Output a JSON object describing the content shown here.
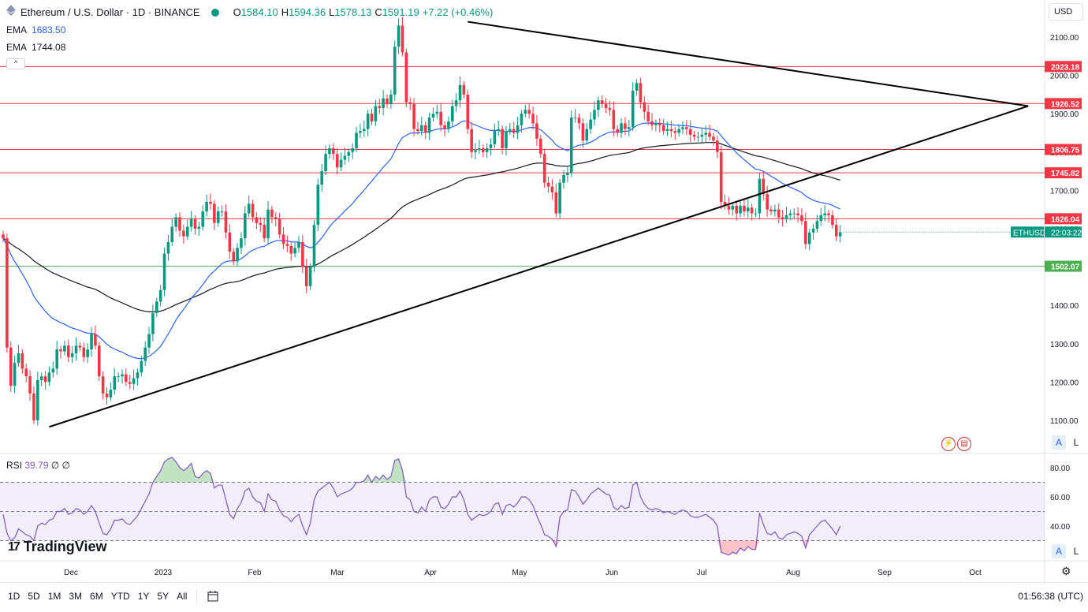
{
  "header": {
    "symbol_title": "Ethereum / U.S. Dollar · 1D · BINANCE",
    "ohlc": [
      {
        "label": "O",
        "value": "1584.10"
      },
      {
        "label": "H",
        "value": "1594.36"
      },
      {
        "label": "L",
        "value": "1578.13"
      },
      {
        "label": "C",
        "value": "1591.19"
      },
      {
        "label": "",
        "value": "+7.22 (+0.46%)"
      }
    ],
    "ema1_label": "EMA",
    "ema1_value": "1683.50",
    "ema2_label": "EMA",
    "ema2_value": "1744.08",
    "collapse_symbol": "^",
    "currency": "USD"
  },
  "colors": {
    "up": "#089981",
    "down": "#f23645",
    "ema_short": "#2962ff",
    "ema_long": "#131722",
    "resistance": "#f23645",
    "support": "#4caf50",
    "rsi": "#7e57c2"
  },
  "icons": [
    "eye-icon",
    "settings-icon",
    "calendar-range-icon",
    "lightning-icon",
    "us-flag-icon"
  ],
  "chart_data": [
    {
      "type": "line",
      "title": "Ethereum / U.S. Dollar · 1D · BINANCE",
      "ylim": [
        1060,
        2150
      ],
      "y_ticks": [
        "1100.00",
        "1200.00",
        "1300.00",
        "1400.00",
        "1500.00",
        "1600.00",
        "1700.00",
        "1800.00",
        "1900.00",
        "2000.00",
        "2100.00"
      ],
      "x_tick_labels": [
        "Dec",
        "2023",
        "Feb",
        "Mar",
        "Apr",
        "May",
        "Jun",
        "Jul",
        "Aug",
        "Sep",
        "Oct"
      ],
      "candles_approx": {
        "close": [
          1575,
          1290,
          1190,
          1250,
          1275,
          1235,
          1215,
          1170,
          1100,
          1205,
          1215,
          1200,
          1225,
          1235,
          1285,
          1280,
          1295,
          1265,
          1275,
          1295,
          1290,
          1265,
          1285,
          1325,
          1295,
          1215,
          1170,
          1160,
          1180,
          1215,
          1215,
          1220,
          1200,
          1195,
          1210,
          1225,
          1255,
          1290,
          1325,
          1380,
          1410,
          1440,
          1535,
          1565,
          1605,
          1630,
          1595,
          1580,
          1605,
          1625,
          1600,
          1605,
          1645,
          1670,
          1665,
          1615,
          1645,
          1645,
          1590,
          1540,
          1515,
          1550,
          1575,
          1640,
          1665,
          1630,
          1615,
          1610,
          1575,
          1650,
          1630,
          1625,
          1585,
          1560,
          1555,
          1535,
          1550,
          1565,
          1500,
          1450,
          1500,
          1610,
          1715,
          1750,
          1795,
          1810,
          1795,
          1760,
          1780,
          1790,
          1800,
          1810,
          1850,
          1855,
          1860,
          1900,
          1880,
          1920,
          1915,
          1940,
          1925,
          1950,
          2075,
          2130,
          2060,
          1930,
          1925,
          1860,
          1855,
          1870,
          1850,
          1890,
          1900,
          1905,
          1870,
          1860,
          1880,
          1920,
          1935,
          1975,
          1950,
          1860,
          1800,
          1805,
          1810,
          1800,
          1810,
          1820,
          1855,
          1860,
          1810,
          1855,
          1860,
          1850,
          1870,
          1900,
          1910,
          1900,
          1875,
          1835,
          1795,
          1720,
          1710,
          1695,
          1640,
          1720,
          1740,
          1745,
          1890,
          1890,
          1875,
          1830,
          1860,
          1885,
          1910,
          1935,
          1925,
          1915,
          1910,
          1860,
          1850,
          1875,
          1860,
          1865,
          1960,
          1980,
          1930,
          1905,
          1880,
          1870,
          1875,
          1870,
          1855,
          1860,
          1855,
          1850,
          1860,
          1865,
          1860,
          1845,
          1840,
          1840,
          1845,
          1850,
          1840,
          1830,
          1800,
          1670,
          1660,
          1650,
          1660,
          1640,
          1660,
          1645,
          1655,
          1640,
          1640,
          1730,
          1690,
          1650,
          1645,
          1650,
          1630,
          1625,
          1635,
          1640,
          1640,
          1635,
          1620,
          1560,
          1590,
          1600,
          1620,
          1635,
          1640,
          1635,
          1610,
          1580,
          1591
        ]
      },
      "series": [
        {
          "name": "EMA",
          "value_label": "1683.50",
          "color": "#2962ff"
        },
        {
          "name": "EMA",
          "value_label": "1744.08",
          "color": "#131722"
        }
      ],
      "horizontal_levels": [
        {
          "value": 2023.18,
          "label": "2023.18",
          "kind": "resistance"
        },
        {
          "value": 1926.52,
          "label": "1926.52",
          "kind": "resistance"
        },
        {
          "value": 1806.75,
          "label": "1806.75",
          "kind": "resistance"
        },
        {
          "value": 1745.82,
          "label": "1745.82",
          "kind": "resistance"
        },
        {
          "value": 1626.04,
          "label": "1626.04",
          "kind": "resistance"
        },
        {
          "value": 1502.07,
          "label": "1502.07",
          "kind": "support"
        }
      ],
      "trendlines": [
        {
          "from": {
            "bar": 12,
            "price": 1083
          },
          "to": {
            "bar": 267,
            "price": 1920
          }
        },
        {
          "from": {
            "bar": 121,
            "price": 2140
          },
          "to": {
            "bar": 267,
            "price": 1920
          }
        }
      ],
      "last_price_tag": {
        "symbol": "ETHUSD",
        "countdown": "22:03:22",
        "value": 1591.19
      },
      "legend_position": "top-left"
    },
    {
      "type": "line",
      "title": "RSI",
      "value_label": "39.79",
      "extra_labels": [
        "∅",
        "∅"
      ],
      "ylim": [
        20,
        90
      ],
      "y_ticks": [
        "40.00",
        "60.00",
        "80.00"
      ],
      "band": [
        30,
        70
      ],
      "values_approx": [
        48,
        35,
        30,
        32,
        38,
        36,
        34,
        33,
        30,
        40,
        42,
        41,
        44,
        45,
        50,
        50,
        52,
        48,
        49,
        52,
        51,
        48,
        50,
        54,
        50,
        42,
        35,
        34,
        38,
        44,
        44,
        45,
        42,
        41,
        44,
        47,
        52,
        57,
        62,
        70,
        74,
        78,
        84,
        86,
        87,
        84,
        80,
        78,
        80,
        83,
        74,
        73,
        76,
        78,
        76,
        66,
        68,
        68,
        58,
        48,
        45,
        52,
        56,
        64,
        66,
        60,
        57,
        56,
        50,
        62,
        58,
        57,
        51,
        47,
        46,
        43,
        46,
        48,
        40,
        34,
        42,
        58,
        64,
        66,
        68,
        70,
        66,
        60,
        62,
        63,
        64,
        66,
        70,
        70,
        71,
        75,
        70,
        74,
        72,
        75,
        72,
        74,
        85,
        86,
        78,
        60,
        58,
        50,
        49,
        53,
        50,
        58,
        60,
        60,
        53,
        52,
        55,
        60,
        60,
        64,
        58,
        48,
        44,
        46,
        48,
        47,
        48,
        50,
        55,
        56,
        48,
        54,
        55,
        53,
        56,
        60,
        60,
        58,
        54,
        47,
        41,
        34,
        33,
        31,
        26,
        46,
        50,
        51,
        65,
        64,
        60,
        55,
        58,
        62,
        64,
        66,
        64,
        62,
        61,
        53,
        51,
        54,
        52,
        53,
        68,
        70,
        60,
        55,
        52,
        51,
        52,
        51,
        49,
        50,
        49,
        48,
        50,
        51,
        50,
        47,
        46,
        46,
        47,
        48,
        46,
        44,
        40,
        22,
        21,
        20,
        22,
        21,
        25,
        23,
        26,
        24,
        24,
        49,
        41,
        35,
        34,
        36,
        32,
        31,
        34,
        35,
        36,
        35,
        33,
        25,
        34,
        37,
        40,
        43,
        44,
        41,
        38,
        34,
        40
      ]
    }
  ],
  "price_axis": {
    "ticks": [
      "1100.00",
      "1200.00",
      "1300.00",
      "1400.00",
      "1500.00",
      "1600.00",
      "1700.00",
      "1800.00",
      "1900.00",
      "2000.00",
      "2100.00"
    ]
  },
  "rsi_axis": {
    "ticks": [
      "40.00",
      "60.00",
      "80.00"
    ]
  },
  "rsi_legend": {
    "label": "RSI",
    "value": "39.79",
    "extra1": "∅",
    "extra2": "∅"
  },
  "time_axis": {
    "labels": [
      "Dec",
      "2023",
      "Feb",
      "Mar",
      "Apr",
      "May",
      "Jun",
      "Jul",
      "Aug",
      "Sep",
      "Oct"
    ]
  },
  "scale_buttons": {
    "auto": "A",
    "log": "L"
  },
  "logo": {
    "mark": "17",
    "text": "TradingView"
  },
  "bottom_bar": {
    "ranges": [
      "1D",
      "5D",
      "1M",
      "3M",
      "6M",
      "YTD",
      "1Y",
      "5Y",
      "All"
    ],
    "clock": "01:56:38 (UTC)"
  }
}
